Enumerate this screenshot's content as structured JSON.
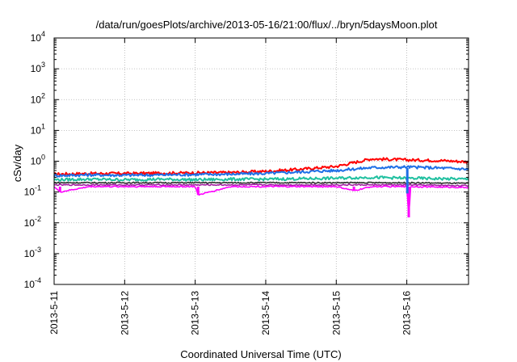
{
  "chart_data": {
    "type": "line",
    "title": "/data/run/goesPlots/archive/2013-05-16/21:00/flux/../bryn/5daysMoon.plot",
    "xlabel": "Coordinated Universal Time (UTC)",
    "ylabel": "cSv/day",
    "y_scale": "log",
    "ylim": [
      0.0001,
      10000
    ],
    "y_ticks": [
      {
        "base": "10",
        "exp": "-4",
        "value": 0.0001
      },
      {
        "base": "10",
        "exp": "-3",
        "value": 0.001
      },
      {
        "base": "10",
        "exp": "-2",
        "value": 0.01
      },
      {
        "base": "10",
        "exp": "-1",
        "value": 0.1
      },
      {
        "base": "10",
        "exp": "0",
        "value": 1
      },
      {
        "base": "10",
        "exp": "1",
        "value": 10
      },
      {
        "base": "10",
        "exp": "2",
        "value": 100
      },
      {
        "base": "10",
        "exp": "3",
        "value": 1000
      },
      {
        "base": "10",
        "exp": "4",
        "value": 10000
      }
    ],
    "xlim": [
      "2013-05-11T00:00",
      "2013-05-16T21:00"
    ],
    "x_ticks": [
      "2013-5-11",
      "2013-5-12",
      "2013-5-13",
      "2013-5-14",
      "2013-5-15",
      "2013-5-16"
    ],
    "grid": true,
    "series": [
      {
        "color": "#ff0000",
        "values": [
          {
            "x": "2013-05-11T00:00",
            "y": 0.38
          },
          {
            "x": "2013-05-11T12:00",
            "y": 0.4
          },
          {
            "x": "2013-05-12T00:00",
            "y": 0.4
          },
          {
            "x": "2013-05-12T12:00",
            "y": 0.41
          },
          {
            "x": "2013-05-13T00:00",
            "y": 0.42
          },
          {
            "x": "2013-05-13T12:00",
            "y": 0.43
          },
          {
            "x": "2013-05-14T00:00",
            "y": 0.47
          },
          {
            "x": "2013-05-14T12:00",
            "y": 0.55
          },
          {
            "x": "2013-05-15T00:00",
            "y": 0.68
          },
          {
            "x": "2013-05-15T12:00",
            "y": 1.2
          },
          {
            "x": "2013-05-16T00:00",
            "y": 1.1
          },
          {
            "x": "2013-05-16T12:00",
            "y": 1.05
          },
          {
            "x": "2013-05-16T21:00",
            "y": 0.95
          }
        ]
      },
      {
        "color": "#1e6fe6",
        "values": [
          {
            "x": "2013-05-11T00:00",
            "y": 0.34
          },
          {
            "x": "2013-05-11T12:00",
            "y": 0.36
          },
          {
            "x": "2013-05-12T00:00",
            "y": 0.35
          },
          {
            "x": "2013-05-12T12:00",
            "y": 0.36
          },
          {
            "x": "2013-05-13T00:00",
            "y": 0.37
          },
          {
            "x": "2013-05-13T12:00",
            "y": 0.38
          },
          {
            "x": "2013-05-14T00:00",
            "y": 0.4
          },
          {
            "x": "2013-05-14T12:00",
            "y": 0.45
          },
          {
            "x": "2013-05-15T00:00",
            "y": 0.5
          },
          {
            "x": "2013-05-15T12:00",
            "y": 0.62
          },
          {
            "x": "2013-05-16T00:00",
            "y": 0.65
          },
          {
            "x": "2013-05-16T12:00",
            "y": 0.6
          },
          {
            "x": "2013-05-16T21:00",
            "y": 0.55
          }
        ]
      },
      {
        "color": "#20c0a0",
        "values": [
          {
            "x": "2013-05-11T00:00",
            "y": 0.25
          },
          {
            "x": "2013-05-11T12:00",
            "y": 0.26
          },
          {
            "x": "2013-05-12T00:00",
            "y": 0.25
          },
          {
            "x": "2013-05-12T12:00",
            "y": 0.26
          },
          {
            "x": "2013-05-13T00:00",
            "y": 0.25
          },
          {
            "x": "2013-05-13T12:00",
            "y": 0.26
          },
          {
            "x": "2013-05-14T00:00",
            "y": 0.26
          },
          {
            "x": "2013-05-14T12:00",
            "y": 0.27
          },
          {
            "x": "2013-05-15T00:00",
            "y": 0.28
          },
          {
            "x": "2013-05-15T12:00",
            "y": 0.3
          },
          {
            "x": "2013-05-16T00:00",
            "y": 0.28
          },
          {
            "x": "2013-05-16T12:00",
            "y": 0.27
          },
          {
            "x": "2013-05-16T21:00",
            "y": 0.26
          }
        ]
      },
      {
        "color": "#303030",
        "values": [
          {
            "x": "2013-05-11T00:00",
            "y": 0.2
          },
          {
            "x": "2013-05-12T00:00",
            "y": 0.2
          },
          {
            "x": "2013-05-13T00:00",
            "y": 0.2
          },
          {
            "x": "2013-05-14T00:00",
            "y": 0.2
          },
          {
            "x": "2013-05-15T00:00",
            "y": 0.2
          },
          {
            "x": "2013-05-16T00:00",
            "y": 0.2
          },
          {
            "x": "2013-05-16T21:00",
            "y": 0.19
          }
        ]
      },
      {
        "color": "#a020a0",
        "values": [
          {
            "x": "2013-05-11T00:00",
            "y": 0.17
          },
          {
            "x": "2013-05-12T00:00",
            "y": 0.17
          },
          {
            "x": "2013-05-13T00:00",
            "y": 0.17
          },
          {
            "x": "2013-05-14T00:00",
            "y": 0.17
          },
          {
            "x": "2013-05-15T00:00",
            "y": 0.17
          },
          {
            "x": "2013-05-16T00:00",
            "y": 0.17
          },
          {
            "x": "2013-05-16T21:00",
            "y": 0.16
          }
        ]
      },
      {
        "color": "#ff00ff",
        "values": [
          {
            "x": "2013-05-11T00:00",
            "y": 0.15
          },
          {
            "x": "2013-05-11T02:00",
            "y": 0.1
          },
          {
            "x": "2013-05-11T12:00",
            "y": 0.15
          },
          {
            "x": "2013-05-12T00:00",
            "y": 0.15
          },
          {
            "x": "2013-05-12T12:00",
            "y": 0.15
          },
          {
            "x": "2013-05-13T00:00",
            "y": 0.15
          },
          {
            "x": "2013-05-13T01:00",
            "y": 0.08
          },
          {
            "x": "2013-05-13T12:00",
            "y": 0.15
          },
          {
            "x": "2013-05-14T00:00",
            "y": 0.15
          },
          {
            "x": "2013-05-15T00:00",
            "y": 0.15
          },
          {
            "x": "2013-05-15T06:00",
            "y": 0.11
          },
          {
            "x": "2013-05-15T12:00",
            "y": 0.15
          },
          {
            "x": "2013-05-16T00:00",
            "y": 0.15
          },
          {
            "x": "2013-05-16T00:40",
            "y": 0.015
          },
          {
            "x": "2013-05-16T01:20",
            "y": 0.15
          },
          {
            "x": "2013-05-16T21:00",
            "y": 0.14
          }
        ]
      }
    ]
  }
}
